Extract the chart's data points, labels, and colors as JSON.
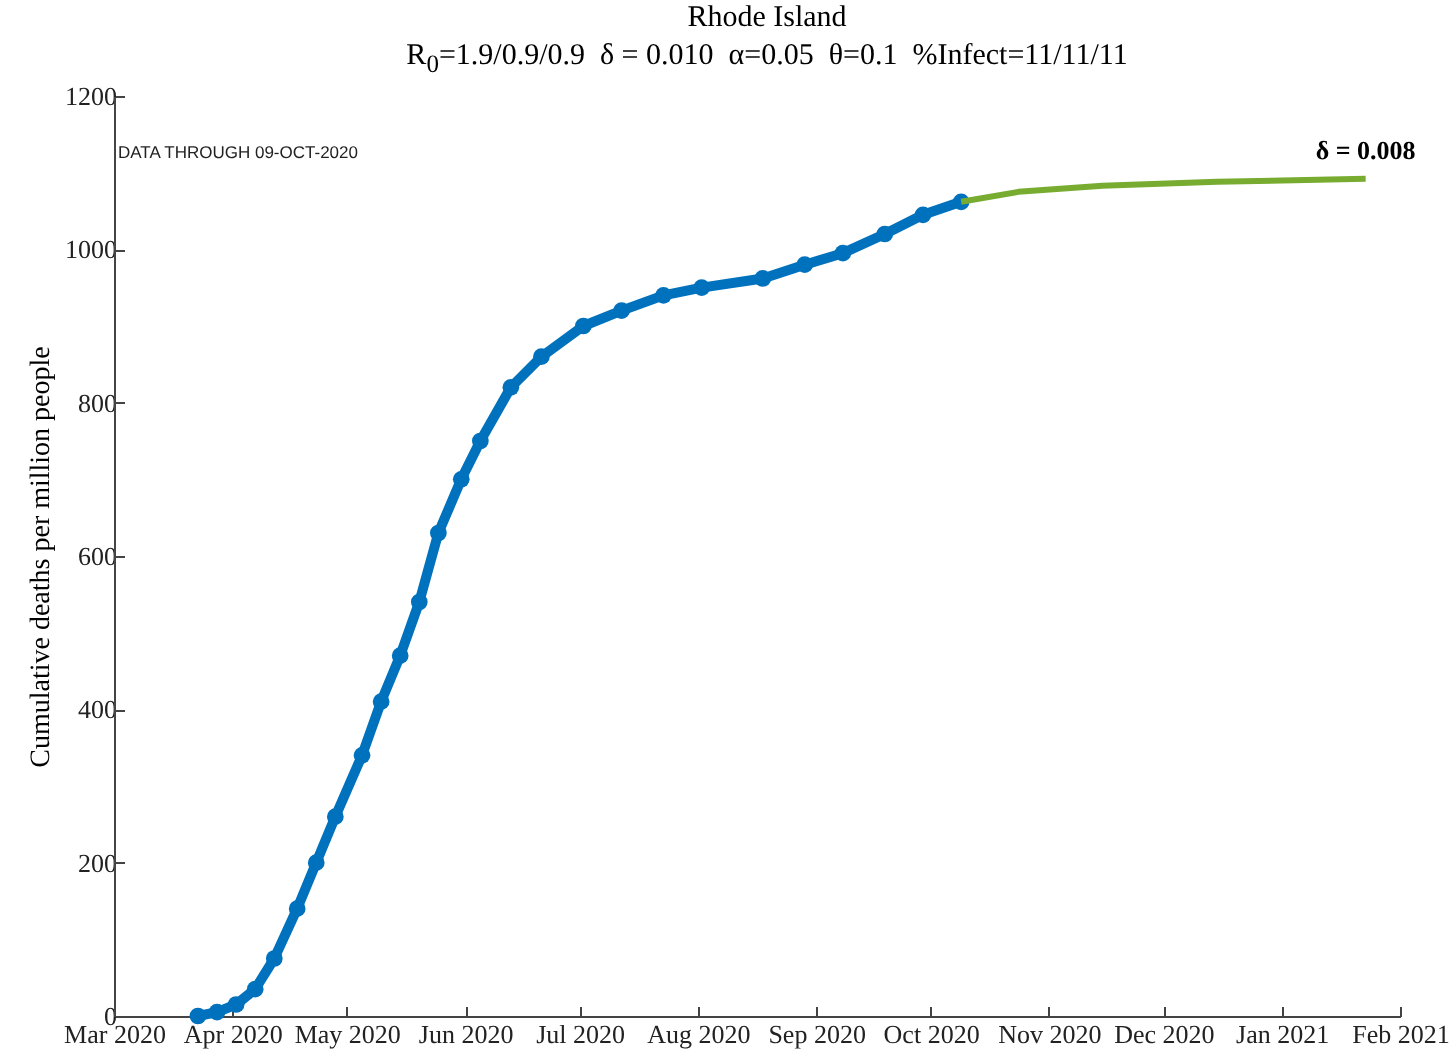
{
  "chart_data": {
    "type": "line",
    "title": "Rhode Island",
    "subtitle": "R$_{0}$=1.9/0.9/0.9  δ = 0.010  α=0.05  θ=0.1  %Infect=11/11/11",
    "ylabel": "Cumulative deaths per million people",
    "annotations": [
      "DATA THROUGH 09-OCT-2020",
      {
        "text": "δ = 0.008",
        "x": "2021-01-23",
        "y": 1092
      }
    ],
    "series": [
      {
        "color": "#0072bd",
        "marker": "circle",
        "x": [
          "2020-03-23",
          "2020-03-28",
          "2020-04-02",
          "2020-04-07",
          "2020-04-12",
          "2020-04-18",
          "2020-04-23",
          "2020-04-28",
          "2020-05-05",
          "2020-05-10",
          "2020-05-15",
          "2020-05-20",
          "2020-05-25",
          "2020-05-31",
          "2020-06-05",
          "2020-06-13",
          "2020-06-21",
          "2020-07-02",
          "2020-07-12",
          "2020-07-23",
          "2020-08-02",
          "2020-08-18",
          "2020-08-29",
          "2020-09-08",
          "2020-09-19",
          "2020-09-29",
          "2020-10-09"
        ],
        "values": [
          0,
          5,
          15,
          35,
          75,
          140,
          200,
          260,
          340,
          410,
          470,
          540,
          630,
          700,
          750,
          820,
          860,
          900,
          920,
          940,
          950,
          962,
          980,
          995,
          1020,
          1045,
          1062
        ]
      },
      {
        "color": "#77ac30",
        "marker": "none",
        "x": [
          "2020-10-09",
          "2020-10-24",
          "2020-11-15",
          "2020-12-15",
          "2021-01-23"
        ],
        "values": [
          1062,
          1075,
          1083,
          1088,
          1092
        ]
      }
    ],
    "xlim": [
      "2020-03-01",
      "2021-02-01"
    ],
    "xticks": [
      {
        "value": "2020-03-01",
        "label": "Mar 2020"
      },
      {
        "value": "2020-04-01",
        "label": "Apr 2020"
      },
      {
        "value": "2020-05-01",
        "label": "May 2020"
      },
      {
        "value": "2020-06-01",
        "label": "Jun 2020"
      },
      {
        "value": "2020-07-01",
        "label": "Jul 2020"
      },
      {
        "value": "2020-08-01",
        "label": "Aug 2020"
      },
      {
        "value": "2020-09-01",
        "label": "Sep 2020"
      },
      {
        "value": "2020-10-01",
        "label": "Oct 2020"
      },
      {
        "value": "2020-11-01",
        "label": "Nov 2020"
      },
      {
        "value": "2020-12-01",
        "label": "Dec 2020"
      },
      {
        "value": "2021-01-01",
        "label": "Jan 2021"
      },
      {
        "value": "2021-02-01",
        "label": "Feb 2021"
      }
    ],
    "ylim": [
      0,
      1200
    ],
    "yticks": [
      0,
      200,
      400,
      600,
      800,
      1000,
      1200
    ],
    "grid": false,
    "legend": false,
    "line_style": "solid"
  }
}
